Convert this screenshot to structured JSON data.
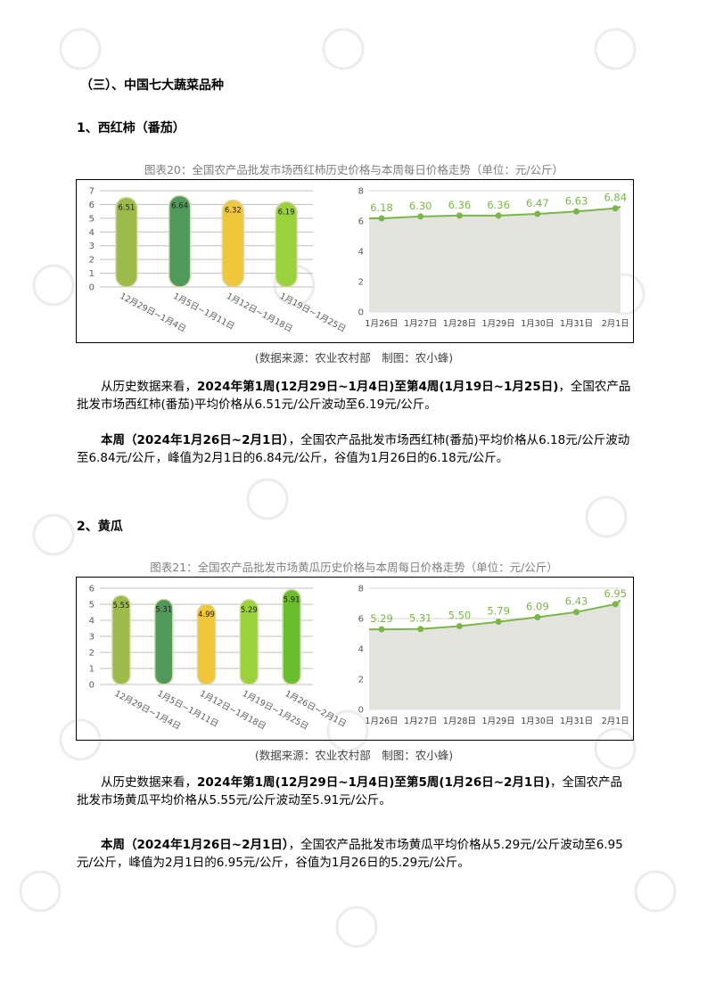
{
  "heading_section": "（三）、中国七大蔬菜品种",
  "tomato": {
    "heading": "1、西红柿（番茄）",
    "caption": "图表20：全国农产品批发市场西红柿历史价格与本周每日价格走势（单位：元/公斤）",
    "source": "(数据来源：农业农村部　制图：农小蜂)",
    "para1_prefix": "从历史数据来看，",
    "para1_bold": "2024年第1周(12月29日~1月4日)至第4周(1月19日~1月25日)",
    "para1_rest": "，全国农产品批发市场西红柿(番茄)平均价格从6.51元/公斤波动至6.19元/公斤。",
    "para2_bold": "本周（2024年1月26日~2月1日）",
    "para2_rest": "，全国农产品批发市场西红柿(番茄)平均价格从6.18元/公斤波动至6.84元/公斤，峰值为2月1日的6.84元/公斤，谷值为1月26日的6.18元/公斤。"
  },
  "cucumber": {
    "heading": "2、黄瓜",
    "caption": "图表21：全国农产品批发市场黄瓜历史价格与本周每日价格走势（单位：元/公斤）",
    "source": "(数据来源：农业农村部　制图：农小蜂)",
    "para1_prefix": "从历史数据来看，",
    "para1_bold": "2024年第1周(12月29日~1月4日)至第5周(1月26日~2月1日)",
    "para1_rest": "，全国农产品批发市场黄瓜平均价格从5.55元/公斤波动至5.91元/公斤。",
    "para2_bold": "本周（2024年1月26日~2月1日）",
    "para2_rest": "，全国农产品批发市场黄瓜平均价格从5.29元/公斤波动至6.95元/公斤，峰值为2月1日的6.95元/公斤，谷值为1月26日的5.29元/公斤。"
  },
  "chart_data": [
    {
      "type": "bar",
      "categories": [
        "12月29日~1月4日",
        "1月5日~1月11日",
        "1月12日~1月18日",
        "1月19日~1月25日"
      ],
      "values": [
        6.51,
        6.64,
        6.32,
        6.19
      ],
      "ylim": [
        0,
        7
      ],
      "yticks": [
        0,
        1,
        2,
        3,
        4,
        5,
        6,
        7
      ],
      "colors": [
        "#9dbb4a",
        "#4f9a5a",
        "#f0c63a",
        "#9ad23b"
      ],
      "grid": true
    },
    {
      "type": "area",
      "x": [
        "1月26日",
        "1月27日",
        "1月28日",
        "1月29日",
        "1月30日",
        "1月31日",
        "2月1日"
      ],
      "values": [
        6.18,
        6.3,
        6.36,
        6.36,
        6.47,
        6.63,
        6.84
      ],
      "ylim": [
        0,
        8
      ],
      "yticks": [
        0,
        2,
        4,
        6,
        8
      ],
      "color": "#7ab648",
      "grid": true
    },
    {
      "type": "bar",
      "categories": [
        "12月29日~1月4日",
        "1月5日~1月11日",
        "1月12日~1月18日",
        "1月19日~1月25日",
        "1月26日~2月1日"
      ],
      "values": [
        5.55,
        5.31,
        4.99,
        5.29,
        5.91
      ],
      "ylim": [
        0,
        6
      ],
      "yticks": [
        0,
        1,
        2,
        3,
        4,
        5,
        6
      ],
      "colors": [
        "#9dbb4a",
        "#4f9a5a",
        "#f0c63a",
        "#9ad23b",
        "#6cbd2e"
      ],
      "grid": true
    },
    {
      "type": "area",
      "x": [
        "1月26日",
        "1月27日",
        "1月28日",
        "1月29日",
        "1月30日",
        "1月31日",
        "2月1日"
      ],
      "values": [
        5.29,
        5.31,
        5.5,
        5.79,
        6.09,
        6.43,
        6.95
      ],
      "ylim": [
        0,
        8
      ],
      "yticks": [
        0,
        2,
        4,
        6,
        8
      ],
      "color": "#7ab648",
      "grid": true
    }
  ]
}
